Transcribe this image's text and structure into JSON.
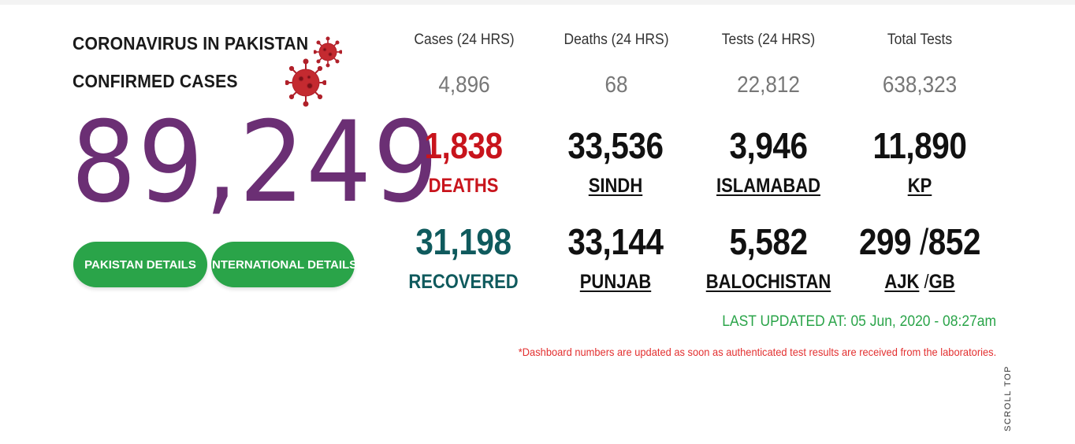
{
  "header": {
    "title_line1": "CORONAVIRUS IN PAKISTAN",
    "title_line2": "CONFIRMED CASES",
    "total_cases": "89,249"
  },
  "buttons": {
    "pakistan": "PAKISTAN DETAILS",
    "international": "INTERNATIONAL DETAILS"
  },
  "daily": [
    {
      "label": "Cases (24 HRS)",
      "value": "4,896"
    },
    {
      "label": "Deaths (24 HRS)",
      "value": "68"
    },
    {
      "label": "Tests (24 HRS)",
      "value": "22,812"
    },
    {
      "label": "Total Tests",
      "value": "638,323"
    }
  ],
  "stats": {
    "deaths": {
      "value": "1,838",
      "label": "DEATHS"
    },
    "recovered": {
      "value": "31,198",
      "label": "RECOVERED"
    },
    "sindh": {
      "value": "33,536",
      "label": "SINDH"
    },
    "punjab": {
      "value": "33,144",
      "label": "PUNJAB"
    },
    "islamabad": {
      "value": "3,946",
      "label": "ISLAMABAD"
    },
    "balochistan": {
      "value": "5,582",
      "label": "BALOCHISTAN"
    },
    "kp": {
      "value": "11,890",
      "label": "KP"
    },
    "ajk": {
      "value": "299",
      "label": "AJK"
    },
    "gb": {
      "value": "852",
      "label": "GB"
    },
    "separator": "/"
  },
  "footer": {
    "last_updated": "LAST UPDATED AT: 05 Jun, 2020 - 08:27am",
    "note": "*Dashboard numbers are updated as soon as authenticated test results are received from the laboratories.",
    "scroll_top": "SCROLL TOP"
  },
  "icons": [
    "virus-icon"
  ],
  "colors": {
    "accent_green": "#2aa449",
    "total_purple": "#6b2f74",
    "deaths_red": "#c8141c",
    "recovered_teal": "#0f5a5d"
  }
}
